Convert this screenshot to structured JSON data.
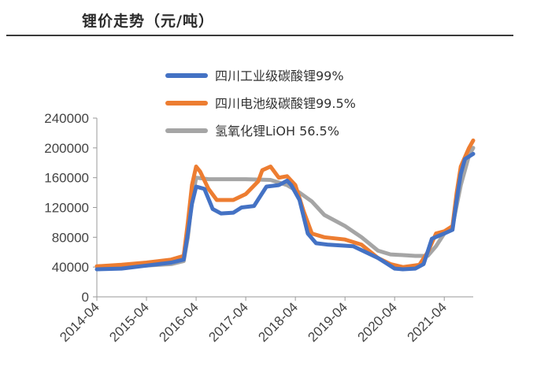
{
  "header": {
    "title": "锂价走势（元/吨）"
  },
  "chart_data": {
    "type": "line",
    "title": "锂价走势（元/吨）",
    "xlabel": "",
    "ylabel": "",
    "ylim": [
      0,
      240000
    ],
    "xlim": [
      "2014-04",
      "2021-11"
    ],
    "yticks": [
      0,
      40000,
      80000,
      120000,
      160000,
      200000,
      240000
    ],
    "ytick_labels": [
      "0",
      "40000",
      "80000",
      "120000",
      "160000",
      "200000",
      "240000"
    ],
    "xticks": [
      "2014-04",
      "2015-04",
      "2016-04",
      "2017-04",
      "2018-04",
      "2019-04",
      "2020-04",
      "2021-04"
    ],
    "legend_position": "top-right",
    "grid": false,
    "series": [
      {
        "name": "四川工业级碳酸锂99%",
        "color": "#4472C4",
        "points": [
          [
            "2014-04",
            37000
          ],
          [
            "2014-10",
            38000
          ],
          [
            "2015-04",
            42000
          ],
          [
            "2015-10",
            46000
          ],
          [
            "2016-01",
            50000
          ],
          [
            "2016-02",
            85000
          ],
          [
            "2016-03",
            125000
          ],
          [
            "2016-04",
            148000
          ],
          [
            "2016-06",
            145000
          ],
          [
            "2016-08",
            118000
          ],
          [
            "2016-10",
            112000
          ],
          [
            "2017-01",
            113000
          ],
          [
            "2017-03",
            120000
          ],
          [
            "2017-06",
            122000
          ],
          [
            "2017-09",
            148000
          ],
          [
            "2017-12",
            150000
          ],
          [
            "2018-01",
            153000
          ],
          [
            "2018-02",
            156000
          ],
          [
            "2018-03",
            150000
          ],
          [
            "2018-05",
            130000
          ],
          [
            "2018-07",
            85000
          ],
          [
            "2018-09",
            72000
          ],
          [
            "2018-12",
            70000
          ],
          [
            "2019-06",
            68000
          ],
          [
            "2019-09",
            60000
          ],
          [
            "2019-12",
            52000
          ],
          [
            "2020-02",
            45000
          ],
          [
            "2020-04",
            38000
          ],
          [
            "2020-06",
            37000
          ],
          [
            "2020-09",
            38000
          ],
          [
            "2020-11",
            44000
          ],
          [
            "2021-01",
            78000
          ],
          [
            "2021-04",
            85000
          ],
          [
            "2021-06",
            90000
          ],
          [
            "2021-07",
            130000
          ],
          [
            "2021-08",
            165000
          ],
          [
            "2021-09",
            185000
          ],
          [
            "2021-11",
            192000
          ]
        ]
      },
      {
        "name": "四川电池级碳酸锂99.5%",
        "color": "#ED7D31",
        "points": [
          [
            "2014-04",
            41000
          ],
          [
            "2014-10",
            43000
          ],
          [
            "2015-04",
            46000
          ],
          [
            "2015-10",
            50000
          ],
          [
            "2016-01",
            55000
          ],
          [
            "2016-02",
            100000
          ],
          [
            "2016-03",
            150000
          ],
          [
            "2016-04",
            175000
          ],
          [
            "2016-05",
            168000
          ],
          [
            "2016-07",
            145000
          ],
          [
            "2016-09",
            130000
          ],
          [
            "2017-01",
            130000
          ],
          [
            "2017-04",
            138000
          ],
          [
            "2017-07",
            155000
          ],
          [
            "2017-08",
            170000
          ],
          [
            "2017-10",
            175000
          ],
          [
            "2017-12",
            160000
          ],
          [
            "2018-02",
            162000
          ],
          [
            "2018-04",
            150000
          ],
          [
            "2018-06",
            115000
          ],
          [
            "2018-08",
            85000
          ],
          [
            "2018-11",
            80000
          ],
          [
            "2019-04",
            77000
          ],
          [
            "2019-08",
            70000
          ],
          [
            "2019-12",
            52000
          ],
          [
            "2020-03",
            44000
          ],
          [
            "2020-06",
            40000
          ],
          [
            "2020-10",
            43000
          ],
          [
            "2020-12",
            60000
          ],
          [
            "2021-02",
            85000
          ],
          [
            "2021-04",
            88000
          ],
          [
            "2021-06",
            95000
          ],
          [
            "2021-07",
            140000
          ],
          [
            "2021-08",
            175000
          ],
          [
            "2021-10",
            200000
          ],
          [
            "2021-11",
            210000
          ]
        ]
      },
      {
        "name": "氢氧化锂LiOH 56.5%",
        "color": "#A5A5A5",
        "points": [
          [
            "2014-04",
            41000
          ],
          [
            "2014-10",
            41000
          ],
          [
            "2015-04",
            42000
          ],
          [
            "2015-10",
            44000
          ],
          [
            "2016-01",
            48000
          ],
          [
            "2016-02",
            80000
          ],
          [
            "2016-03",
            130000
          ],
          [
            "2016-04",
            160000
          ],
          [
            "2016-07",
            158000
          ],
          [
            "2016-10",
            158000
          ],
          [
            "2017-04",
            158000
          ],
          [
            "2017-10",
            157000
          ],
          [
            "2018-02",
            150000
          ],
          [
            "2018-05",
            140000
          ],
          [
            "2018-08",
            128000
          ],
          [
            "2018-11",
            110000
          ],
          [
            "2019-04",
            95000
          ],
          [
            "2019-08",
            80000
          ],
          [
            "2019-12",
            62000
          ],
          [
            "2020-03",
            57000
          ],
          [
            "2020-06",
            56000
          ],
          [
            "2020-09",
            55000
          ],
          [
            "2020-12",
            55000
          ],
          [
            "2021-02",
            68000
          ],
          [
            "2021-04",
            85000
          ],
          [
            "2021-06",
            95000
          ],
          [
            "2021-08",
            150000
          ],
          [
            "2021-10",
            190000
          ],
          [
            "2021-11",
            200000
          ]
        ]
      }
    ]
  }
}
